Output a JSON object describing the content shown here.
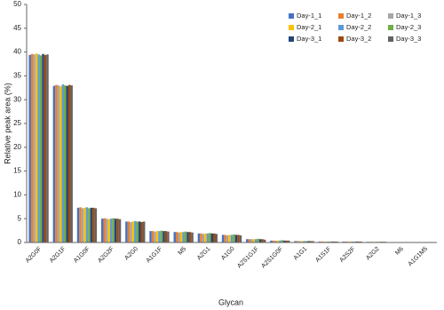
{
  "chart_data": {
    "type": "bar",
    "y_label": "Relative peak area (%)",
    "x_label": "Glycan",
    "categories": [
      "A2G0F",
      "A2G1F",
      "A1G0F",
      "A2G2F",
      "A2G0",
      "A1G1F",
      "M5",
      "A2G1",
      "A1G0",
      "A2S1G1F",
      "A2S1G0F",
      "A1G1",
      "A1S1F",
      "A2S2F",
      "A2G2",
      "M6",
      "A1G1M5"
    ],
    "series": [
      {
        "name": "Day-1_1",
        "color": "#4472c4",
        "values": [
          39.4,
          32.9,
          7.3,
          5.0,
          4.4,
          2.4,
          2.2,
          1.9,
          1.6,
          0.7,
          0.4,
          0.3,
          0.2,
          0.2,
          0.15,
          0.1,
          0.1
        ]
      },
      {
        "name": "Day-1_2",
        "color": "#ed7d31",
        "values": [
          39.6,
          33.1,
          7.4,
          5.1,
          4.4,
          2.4,
          2.2,
          1.9,
          1.6,
          0.7,
          0.4,
          0.3,
          0.2,
          0.2,
          0.15,
          0.1,
          0.1
        ]
      },
      {
        "name": "Day-1_3",
        "color": "#a5a5a5",
        "values": [
          39.5,
          33.0,
          7.2,
          5.0,
          4.3,
          2.3,
          2.1,
          1.8,
          1.5,
          0.7,
          0.4,
          0.3,
          0.2,
          0.2,
          0.15,
          0.1,
          0.1
        ]
      },
      {
        "name": "Day-2_1",
        "color": "#ffc000",
        "values": [
          39.7,
          32.8,
          7.3,
          4.9,
          4.4,
          2.4,
          2.2,
          1.9,
          1.6,
          0.7,
          0.4,
          0.3,
          0.2,
          0.2,
          0.15,
          0.1,
          0.1
        ]
      },
      {
        "name": "Day-2_2",
        "color": "#5b9bd5",
        "values": [
          39.5,
          33.2,
          7.4,
          5.0,
          4.5,
          2.4,
          2.2,
          1.9,
          1.6,
          0.7,
          0.4,
          0.3,
          0.2,
          0.2,
          0.15,
          0.1,
          0.1
        ]
      },
      {
        "name": "Day-2_3",
        "color": "#70ad47",
        "values": [
          39.3,
          33.0,
          7.2,
          5.1,
          4.4,
          2.5,
          2.3,
          2.0,
          1.7,
          0.8,
          0.5,
          0.3,
          0.2,
          0.2,
          0.15,
          0.1,
          0.1
        ]
      },
      {
        "name": "Day-3_1",
        "color": "#264478",
        "values": [
          39.6,
          32.9,
          7.3,
          5.0,
          4.4,
          2.4,
          2.2,
          1.9,
          1.6,
          0.7,
          0.4,
          0.3,
          0.2,
          0.2,
          0.15,
          0.1,
          0.1
        ]
      },
      {
        "name": "Day-3_2",
        "color": "#9e480e",
        "values": [
          39.4,
          33.1,
          7.3,
          5.0,
          4.3,
          2.4,
          2.2,
          1.9,
          1.6,
          0.7,
          0.4,
          0.3,
          0.2,
          0.2,
          0.15,
          0.1,
          0.1
        ]
      },
      {
        "name": "Day-3_3",
        "color": "#636363",
        "values": [
          39.5,
          33.0,
          7.2,
          4.9,
          4.4,
          2.3,
          2.1,
          1.8,
          1.5,
          0.6,
          0.4,
          0.3,
          0.2,
          0.2,
          0.15,
          0.1,
          0.1
        ]
      }
    ],
    "ylim": [
      0,
      50
    ],
    "yticks": [
      0,
      5,
      10,
      15,
      20,
      25,
      30,
      35,
      40,
      45,
      50
    ],
    "grid": false,
    "legend": "top-right"
  }
}
